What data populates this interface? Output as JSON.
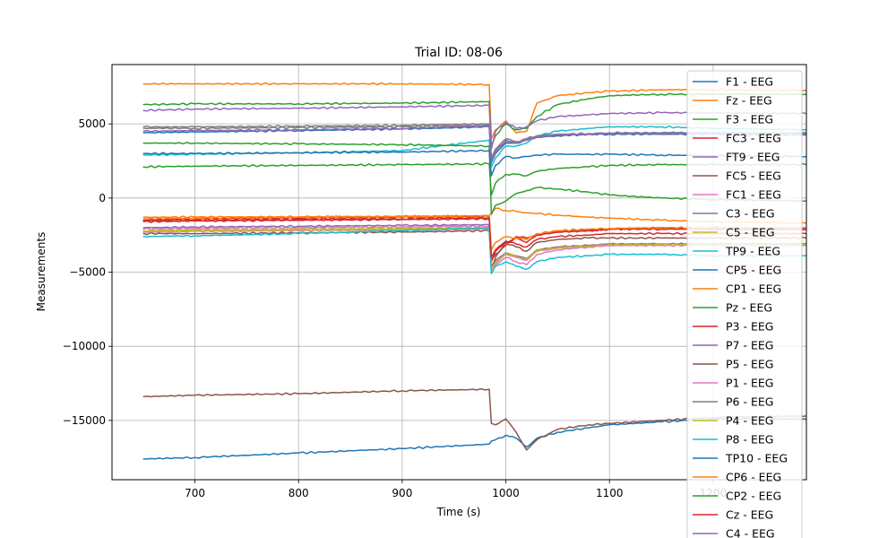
{
  "chart_data": {
    "type": "line",
    "title": "Trial ID: 08-06",
    "xlabel": "Time (s)",
    "ylabel": "Measurements",
    "xlim": [
      620,
      1290
    ],
    "ylim": [
      -19000,
      9000
    ],
    "xticks": [
      700,
      800,
      900,
      1000,
      1100,
      1200
    ],
    "yticks": [
      -15000,
      -10000,
      -5000,
      0,
      5000
    ],
    "ytick_labels": [
      "−15000",
      "−10000",
      "−5000",
      "0",
      "5000"
    ],
    "grid": true,
    "legend_position": "right",
    "series": [
      {
        "name": "F1 - EEG",
        "color": "#1f77b4",
        "x": [
          650,
          700,
          800,
          900,
          984,
          986,
          990,
          1000,
          1010,
          1020,
          1030,
          1050,
          1080,
          1100,
          1150,
          1200,
          1290
        ],
        "y": [
          -17600,
          -17500,
          -17200,
          -16900,
          -16600,
          -16400,
          -16300,
          -16000,
          -16200,
          -16800,
          -16200,
          -15800,
          -15500,
          -15300,
          -15100,
          -14900,
          -14900
        ]
      },
      {
        "name": "Fz - EEG",
        "color": "#ff7f0e",
        "x": [
          650,
          700,
          800,
          900,
          984,
          986,
          990,
          1000,
          1010,
          1020,
          1030,
          1050,
          1080,
          1100,
          1150,
          1200,
          1290
        ],
        "y": [
          7700,
          7700,
          7700,
          7700,
          7650,
          4000,
          4600,
          5200,
          4400,
          4500,
          6400,
          6900,
          7100,
          7200,
          7300,
          7300,
          7250
        ]
      },
      {
        "name": "F3 - EEG",
        "color": "#2ca02c",
        "x": [
          650,
          700,
          800,
          900,
          984,
          986,
          990,
          1000,
          1010,
          1020,
          1030,
          1050,
          1080,
          1100,
          1150,
          1200,
          1290
        ],
        "y": [
          6300,
          6350,
          6350,
          6400,
          6500,
          3500,
          4200,
          5000,
          4600,
          4700,
          5500,
          6300,
          6700,
          6900,
          7000,
          7000,
          7000
        ]
      },
      {
        "name": "FC3 - EEG",
        "color": "#d62728",
        "x": [
          650,
          700,
          800,
          900,
          984,
          986,
          990,
          1000,
          1010,
          1020,
          1030,
          1050,
          1080,
          1100,
          1150,
          1200,
          1290
        ],
        "y": [
          -1500,
          -1400,
          -1350,
          -1300,
          -1250,
          -4300,
          -3600,
          -3000,
          -2700,
          -3000,
          -2500,
          -2300,
          -2200,
          -2100,
          -2000,
          -2100,
          -2100
        ]
      },
      {
        "name": "FT9 - EEG",
        "color": "#9467bd",
        "x": [
          650,
          700,
          800,
          900,
          984,
          986,
          990,
          1000,
          1010,
          1020,
          1030,
          1050,
          1080,
          1100,
          1150,
          1200,
          1290
        ],
        "y": [
          5900,
          6000,
          6050,
          6150,
          6250,
          3300,
          4500,
          5100,
          4700,
          4800,
          5200,
          5500,
          5600,
          5700,
          5750,
          5750,
          5700
        ]
      },
      {
        "name": "FC5 - EEG",
        "color": "#8c564b",
        "x": [
          650,
          700,
          800,
          900,
          984,
          986,
          990,
          1000,
          1010,
          1020,
          1030,
          1050,
          1080,
          1100,
          1150,
          1200,
          1290
        ],
        "y": [
          -13400,
          -13300,
          -13200,
          -13000,
          -12900,
          -15200,
          -15300,
          -14900,
          -15800,
          -17000,
          -16300,
          -15600,
          -15300,
          -15200,
          -15000,
          -14800,
          -14700
        ]
      },
      {
        "name": "FC1 - EEG",
        "color": "#e377c2",
        "x": [
          650,
          700,
          800,
          900,
          984,
          986,
          990,
          1000,
          1010,
          1020,
          1030,
          1050,
          1080,
          1100,
          1150,
          1200,
          1290
        ],
        "y": [
          -2100,
          -2050,
          -2000,
          -1950,
          -1900,
          -4800,
          -4500,
          -4000,
          -4300,
          -4500,
          -3800,
          -3500,
          -3300,
          -3200,
          -3100,
          -3100,
          -3100
        ]
      },
      {
        "name": "C3 - EEG",
        "color": "#7f7f7f",
        "x": [
          650,
          700,
          800,
          900,
          984,
          986,
          990,
          1000,
          1010,
          1020,
          1030,
          1050,
          1080,
          1100,
          1150,
          1200,
          1290
        ],
        "y": [
          4700,
          4700,
          4750,
          4800,
          4900,
          2600,
          3200,
          3900,
          3700,
          3900,
          4100,
          4200,
          4300,
          4350,
          4400,
          4400,
          4400
        ]
      },
      {
        "name": "C5 - EEG",
        "color": "#bcbd22",
        "x": [
          650,
          700,
          800,
          900,
          984,
          986,
          990,
          1000,
          1010,
          1020,
          1030,
          1050,
          1080,
          1100,
          1150,
          1200,
          1290
        ],
        "y": [
          -2200,
          -2150,
          -2100,
          -2050,
          -2000,
          -4700,
          -4300,
          -3700,
          -3900,
          -4200,
          -3500,
          -3300,
          -3200,
          -3100,
          -3100,
          -3100,
          -3100
        ]
      },
      {
        "name": "TP9 - EEG",
        "color": "#17becf",
        "x": [
          650,
          700,
          800,
          900,
          984,
          986,
          990,
          1000,
          1010,
          1020,
          1030,
          1050,
          1080,
          1100,
          1150,
          1200,
          1290
        ],
        "y": [
          2900,
          2950,
          3050,
          3200,
          3900,
          2100,
          2700,
          3500,
          3500,
          3700,
          4200,
          4500,
          4700,
          4800,
          4800,
          4700,
          4600
        ]
      },
      {
        "name": "CP5 - EEG",
        "color": "#1f77b4",
        "x": [
          650,
          700,
          800,
          900,
          984,
          986,
          990,
          1000,
          1010,
          1020,
          1030,
          1050,
          1080,
          1100,
          1150,
          1200,
          1290
        ],
        "y": [
          4400,
          4450,
          4550,
          4650,
          4800,
          2400,
          3000,
          3700,
          3700,
          3900,
          4100,
          4200,
          4300,
          4300,
          4300,
          4300,
          4250
        ]
      },
      {
        "name": "CP1 - EEG",
        "color": "#ff7f0e",
        "x": [
          650,
          700,
          800,
          900,
          984,
          986,
          990,
          1000,
          1010,
          1020,
          1030,
          1050,
          1080,
          1100,
          1150,
          1200,
          1290
        ],
        "y": [
          -1400,
          -1350,
          -1300,
          -1250,
          -1200,
          -1000,
          -700,
          -850,
          -900,
          -1000,
          -1050,
          -1150,
          -1300,
          -1350,
          -1500,
          -1600,
          -1700
        ]
      },
      {
        "name": "Pz - EEG",
        "color": "#2ca02c",
        "x": [
          650,
          700,
          800,
          900,
          984,
          986,
          990,
          1000,
          1010,
          1020,
          1030,
          1050,
          1080,
          1100,
          1150,
          1200,
          1290
        ],
        "y": [
          3700,
          3700,
          3650,
          3600,
          3500,
          -1100,
          -500,
          -200,
          300,
          500,
          700,
          600,
          400,
          200,
          0,
          -100,
          -200
        ]
      },
      {
        "name": "P3 - EEG",
        "color": "#d62728",
        "x": [
          650,
          700,
          800,
          900,
          984,
          986,
          990,
          1000,
          1010,
          1020,
          1030,
          1050,
          1080,
          1100,
          1150,
          1200,
          1290
        ],
        "y": [
          -1600,
          -1550,
          -1500,
          -1450,
          -1400,
          -4200,
          -3800,
          -3200,
          -2600,
          -2700,
          -2500,
          -2300,
          -2200,
          -2100,
          -2100,
          -2100,
          -2100
        ]
      },
      {
        "name": "P7 - EEG",
        "color": "#9467bd",
        "x": [
          650,
          700,
          800,
          900,
          984,
          986,
          990,
          1000,
          1010,
          1020,
          1030,
          1050,
          1080,
          1100,
          1150,
          1200,
          1290
        ],
        "y": [
          -2000,
          -1950,
          -1900,
          -1850,
          -1800,
          -4600,
          -4200,
          -3700,
          -3900,
          -4100,
          -3500,
          -3300,
          -3200,
          -3100,
          -3100,
          -3100,
          -3100
        ]
      },
      {
        "name": "P5 - EEG",
        "color": "#8c564b",
        "x": [
          650,
          700,
          800,
          900,
          984,
          986,
          990,
          1000,
          1010,
          1020,
          1030,
          1050,
          1080,
          1100,
          1150,
          1200,
          1290
        ],
        "y": [
          -2400,
          -2400,
          -2350,
          -2300,
          -2200,
          -4900,
          -4000,
          -3000,
          -3300,
          -3600,
          -3000,
          -2800,
          -2700,
          -2700,
          -2700,
          -2700,
          -2700
        ]
      },
      {
        "name": "P1 - EEG",
        "color": "#e377c2",
        "x": [
          650,
          700,
          800,
          900,
          984,
          986,
          990,
          1000,
          1010,
          1020,
          1030,
          1050,
          1080,
          1100,
          1150,
          1200,
          1290
        ],
        "y": [
          -2300,
          -2250,
          -2200,
          -2150,
          -2100,
          -4800,
          -4400,
          -3800,
          -4000,
          -4200,
          -3600,
          -3400,
          -3300,
          -3200,
          -3200,
          -3200,
          -3200
        ]
      },
      {
        "name": "P6 - EEG",
        "color": "#7f7f7f",
        "x": [
          650,
          700,
          800,
          900,
          984,
          986,
          990,
          1000,
          1010,
          1020,
          1030,
          1050,
          1080,
          1100,
          1150,
          1200,
          1290
        ],
        "y": [
          4800,
          4800,
          4850,
          4900,
          5000,
          2700,
          3300,
          4000,
          3800,
          4000,
          4200,
          4300,
          4350,
          4400,
          4400,
          4400,
          4350
        ]
      },
      {
        "name": "P4 - EEG",
        "color": "#bcbd22",
        "x": [
          650,
          700,
          800,
          900,
          984,
          986,
          990,
          1000,
          1010,
          1020,
          1030,
          1050,
          1080,
          1100,
          1150,
          1200,
          1290
        ],
        "y": [
          -2250,
          -2200,
          -2150,
          -2100,
          -2050,
          -4750,
          -4350,
          -3750,
          -3950,
          -4150,
          -3550,
          -3350,
          -3250,
          -3150,
          -3150,
          -3150,
          -3150
        ]
      },
      {
        "name": "P8 - EEG",
        "color": "#17becf",
        "x": [
          650,
          700,
          800,
          900,
          984,
          986,
          990,
          1000,
          1010,
          1020,
          1030,
          1050,
          1080,
          1100,
          1150,
          1200,
          1290
        ],
        "y": [
          -2600,
          -2550,
          -2400,
          -2200,
          -2000,
          -5100,
          -4600,
          -4300,
          -4600,
          -4800,
          -4300,
          -4000,
          -3900,
          -3800,
          -3800,
          -3900,
          -3900
        ]
      },
      {
        "name": "TP10 - EEG",
        "color": "#1f77b4",
        "x": [
          650,
          700,
          800,
          900,
          984,
          986,
          990,
          1000,
          1010,
          1020,
          1030,
          1050,
          1080,
          1100,
          1150,
          1200,
          1290
        ],
        "y": [
          3000,
          3000,
          3050,
          3100,
          3200,
          1500,
          2200,
          2800,
          2700,
          2800,
          2900,
          2950,
          2950,
          2950,
          2900,
          2850,
          2800
        ]
      },
      {
        "name": "CP6 - EEG",
        "color": "#ff7f0e",
        "x": [
          650,
          700,
          800,
          900,
          984,
          986,
          990,
          1000,
          1010,
          1020,
          1030,
          1050,
          1080,
          1100,
          1150,
          1200,
          1290
        ],
        "y": [
          -1300,
          -1280,
          -1260,
          -1240,
          -1200,
          -3500,
          -3000,
          -2600,
          -2700,
          -2800,
          -2400,
          -2200,
          -2100,
          -2050,
          -2000,
          -2000,
          -2000
        ]
      },
      {
        "name": "CP2 - EEG",
        "color": "#2ca02c",
        "x": [
          650,
          700,
          800,
          900,
          984,
          986,
          990,
          1000,
          1010,
          1020,
          1030,
          1050,
          1080,
          1100,
          1150,
          1200,
          1290
        ],
        "y": [
          2100,
          2150,
          2200,
          2250,
          2300,
          200,
          1000,
          1600,
          1600,
          1500,
          1800,
          2000,
          2100,
          2200,
          2250,
          2250,
          2250
        ]
      },
      {
        "name": "Cz - EEG",
        "color": "#d62728",
        "x": [
          650,
          700,
          800,
          900,
          984,
          986,
          990,
          1000,
          1010,
          1020,
          1030,
          1050,
          1080,
          1100,
          1150,
          1200,
          1290
        ],
        "y": [
          -1550,
          -1500,
          -1450,
          -1400,
          -1350,
          -4000,
          -3500,
          -2900,
          -3100,
          -3300,
          -2800,
          -2600,
          -2500,
          -2400,
          -2400,
          -2400,
          -2400
        ]
      },
      {
        "name": "C4 - EEG",
        "color": "#9467bd",
        "x": [
          650,
          700,
          800,
          900,
          984,
          986,
          990,
          1000,
          1010,
          1020,
          1030,
          1050,
          1080,
          1100,
          1150,
          1200,
          1290
        ],
        "y": [
          4500,
          4550,
          4600,
          4700,
          4850,
          2500,
          3100,
          3800,
          3700,
          3900,
          4100,
          4250,
          4300,
          4350,
          4350,
          4350,
          4300
        ]
      }
    ]
  }
}
